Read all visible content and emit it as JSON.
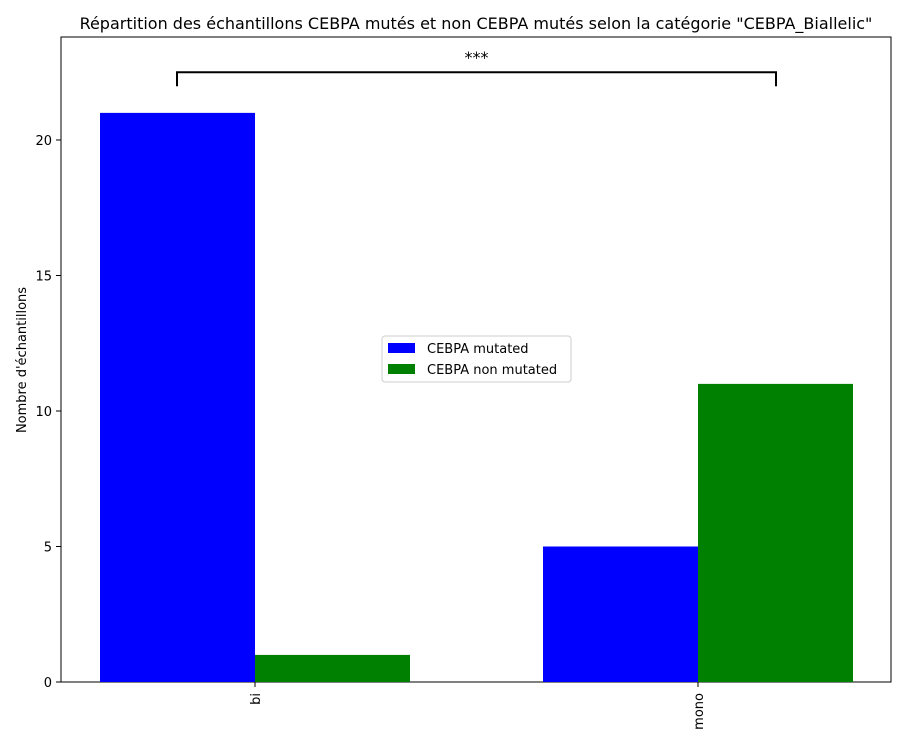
{
  "chart_data": {
    "type": "bar",
    "title": "Répartition des échantillons CEBPA mutés et non CEBPA mutés selon la catégorie \"CEBPA_Biallelic\"",
    "xlabel": "",
    "ylabel": "Nombre d'échantillons",
    "categories": [
      "bi",
      "mono"
    ],
    "series": [
      {
        "name": "CEBPA mutated",
        "values": [
          21,
          5
        ],
        "color": "#0000ff"
      },
      {
        "name": "CEBPA non mutated",
        "values": [
          1,
          11
        ],
        "color": "#008000"
      }
    ],
    "ylim": [
      0,
      23.8
    ],
    "yticks": [
      "0",
      "5",
      "10",
      "15",
      "20"
    ],
    "grid": false,
    "legend_position": "center",
    "annotation": {
      "text": "***",
      "from_category": "bi",
      "to_category": "mono",
      "level": 22.5
    }
  }
}
